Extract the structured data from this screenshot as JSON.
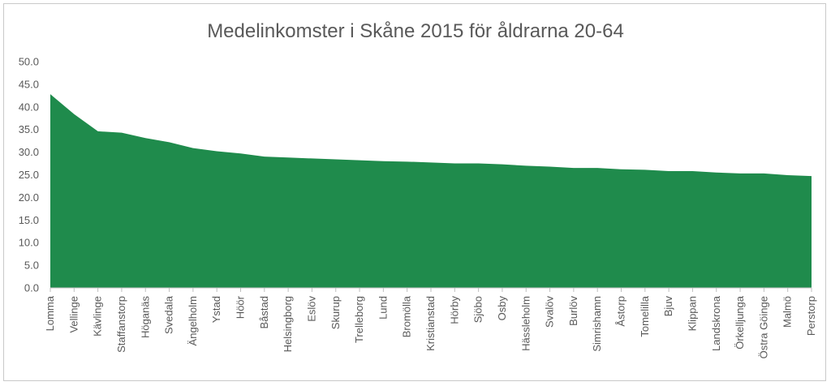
{
  "chart_data": {
    "type": "area",
    "title": "Medelinkomster i Skåne 2015 för åldrarna 20-64",
    "xlabel": "",
    "ylabel": "",
    "ylim": [
      0,
      50
    ],
    "yticks": [
      "0.0",
      "5.0",
      "10.0",
      "15.0",
      "20.0",
      "25.0",
      "30.0",
      "35.0",
      "40.0",
      "45.0",
      "50.0"
    ],
    "grid": false,
    "legend": "none",
    "color": "#1f8b4c",
    "categories": [
      "Lomma",
      "Vellinge",
      "Kävlinge",
      "Staffanstorp",
      "Höganäs",
      "Svedala",
      "Ängelholm",
      "Ystad",
      "Höör",
      "Båstad",
      "Helsingborg",
      "Eslöv",
      "Skurup",
      "Trelleborg",
      "Lund",
      "Bromölla",
      "Kristianstad",
      "Hörby",
      "Sjöbo",
      "Osby",
      "Hässleholm",
      "Svalöv",
      "Burlöv",
      "Simrishamn",
      "Åstorp",
      "Tomelilla",
      "Bjuv",
      "Klippan",
      "Landskrona",
      "Örkelljunga",
      "Östra Göinge",
      "Malmö",
      "Perstorp"
    ],
    "values": [
      42.8,
      38.4,
      34.6,
      34.3,
      33.1,
      32.2,
      30.9,
      30.2,
      29.7,
      29.0,
      28.8,
      28.6,
      28.4,
      28.2,
      28.0,
      27.9,
      27.7,
      27.5,
      27.5,
      27.3,
      27.0,
      26.8,
      26.5,
      26.5,
      26.2,
      26.1,
      25.8,
      25.8,
      25.5,
      25.3,
      25.3,
      24.9,
      24.7
    ]
  }
}
